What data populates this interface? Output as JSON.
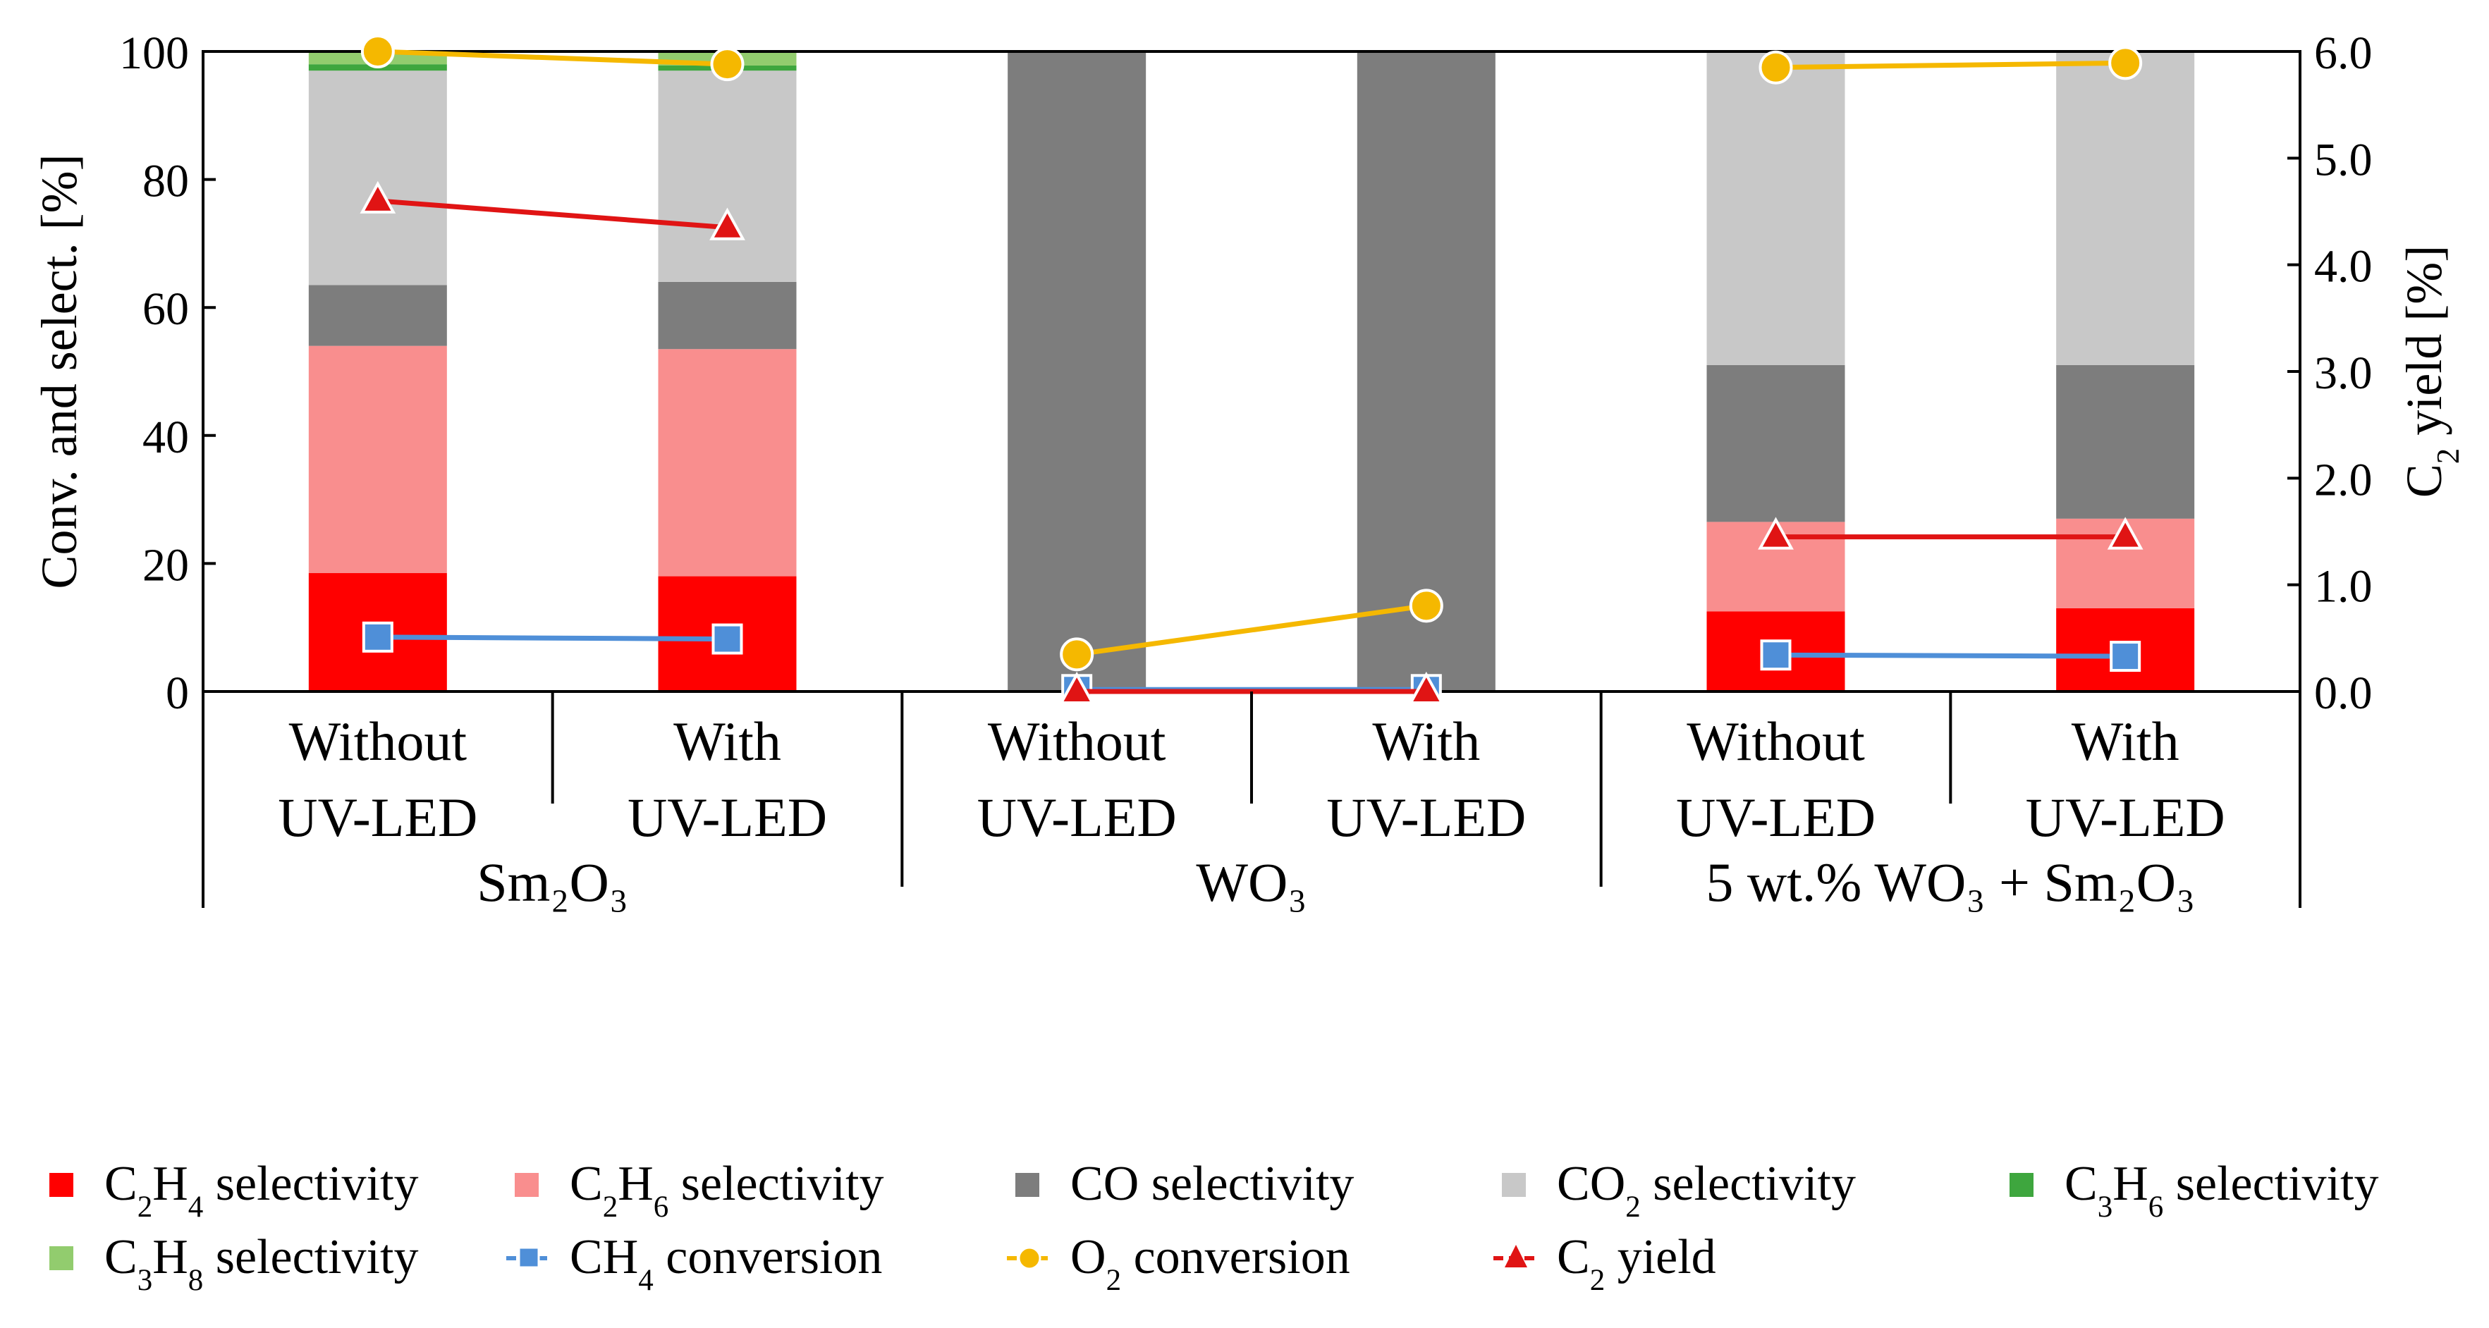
{
  "chart_data": {
    "type": "bar",
    "stacked": true,
    "groups": [
      {
        "label": "Sm₂O₃",
        "first": 0,
        "last": 1
      },
      {
        "label": "WO₃",
        "first": 2,
        "last": 3
      },
      {
        "label": "5 wt.% WO₃ + Sm₂O₃",
        "first": 4,
        "last": 5
      }
    ],
    "categories": [
      [
        "Without",
        "UV-LED"
      ],
      [
        "With",
        "UV-LED"
      ],
      [
        "Without",
        "UV-LED"
      ],
      [
        "With",
        "UV-LED"
      ],
      [
        "Without",
        "UV-LED"
      ],
      [
        "With",
        "UV-LED"
      ]
    ],
    "series": [
      {
        "name": "C2H4 selectivity",
        "label": [
          "C",
          "2",
          "H",
          "4",
          " selectivity"
        ],
        "color": "#ff0000",
        "values": [
          18.5,
          18.0,
          0,
          0,
          12.5,
          13.0
        ]
      },
      {
        "name": "C2H6 selectivity",
        "label": [
          "C",
          "2",
          "H",
          "6",
          " selectivity"
        ],
        "color": "#f98e8e",
        "values": [
          35.5,
          35.5,
          0,
          0,
          14.0,
          14.0
        ]
      },
      {
        "name": "CO selectivity",
        "label": [
          "CO selectivity"
        ],
        "color": "#7d7d7d",
        "values": [
          9.5,
          10.5,
          100,
          100,
          24.5,
          24.0
        ]
      },
      {
        "name": "CO2 selectivity",
        "label": [
          "CO",
          "2",
          " selectivity"
        ],
        "color": "#c8c8c8",
        "values": [
          33.5,
          33.0,
          0,
          0,
          49.0,
          49.0
        ]
      },
      {
        "name": "C3H6 selectivity",
        "label": [
          "C",
          "3",
          "H",
          "6",
          " selectivity"
        ],
        "color": "#3ea63e",
        "values": [
          1.0,
          0.8,
          0,
          0,
          0,
          0
        ]
      },
      {
        "name": "C3H8 selectivity",
        "label": [
          "C",
          "3",
          "H",
          "8",
          " selectivity"
        ],
        "color": "#92cc6e",
        "values": [
          2.0,
          2.2,
          0,
          0,
          0,
          0
        ]
      }
    ],
    "lines": [
      {
        "name": "CH4 conversion",
        "label": [
          "CH",
          "4",
          " conversion"
        ],
        "axis": "left",
        "marker": "square",
        "color": "#4f8fd8",
        "segments": [
          [
            0,
            1
          ],
          [
            2,
            3
          ],
          [
            4,
            5
          ]
        ],
        "values": [
          8.5,
          8.2,
          0.3,
          0.3,
          5.7,
          5.5
        ]
      },
      {
        "name": "O2 conversion",
        "label": [
          "O",
          "2",
          " conversion"
        ],
        "axis": "left",
        "marker": "circle",
        "color": "#f5b800",
        "segments": [
          [
            0,
            1
          ],
          [
            2,
            3
          ],
          [
            4,
            5
          ]
        ],
        "values": [
          100,
          98,
          5.8,
          13.4,
          97.5,
          98.2
        ]
      },
      {
        "name": "C2 yield",
        "label": [
          "C",
          "2",
          " yield"
        ],
        "axis": "right",
        "marker": "triangle",
        "color": "#e01414",
        "segments": [
          [
            0,
            1
          ],
          [
            2,
            3
          ],
          [
            4,
            5
          ]
        ],
        "values": [
          4.6,
          4.35,
          0.0,
          0.0,
          1.45,
          1.45
        ]
      }
    ],
    "ylabel": "Conv. and select. [%]",
    "y2label": [
      "C",
      "2",
      " yield [%]"
    ],
    "ylim": [
      0,
      100
    ],
    "y2lim": [
      0,
      6.0
    ],
    "yticks": [
      "0",
      "20",
      "40",
      "60",
      "80",
      "100"
    ],
    "y2ticks": [
      "0.0",
      "1.0",
      "2.0",
      "3.0",
      "4.0",
      "5.0",
      "6.0"
    ],
    "legend_position": "bottom"
  }
}
